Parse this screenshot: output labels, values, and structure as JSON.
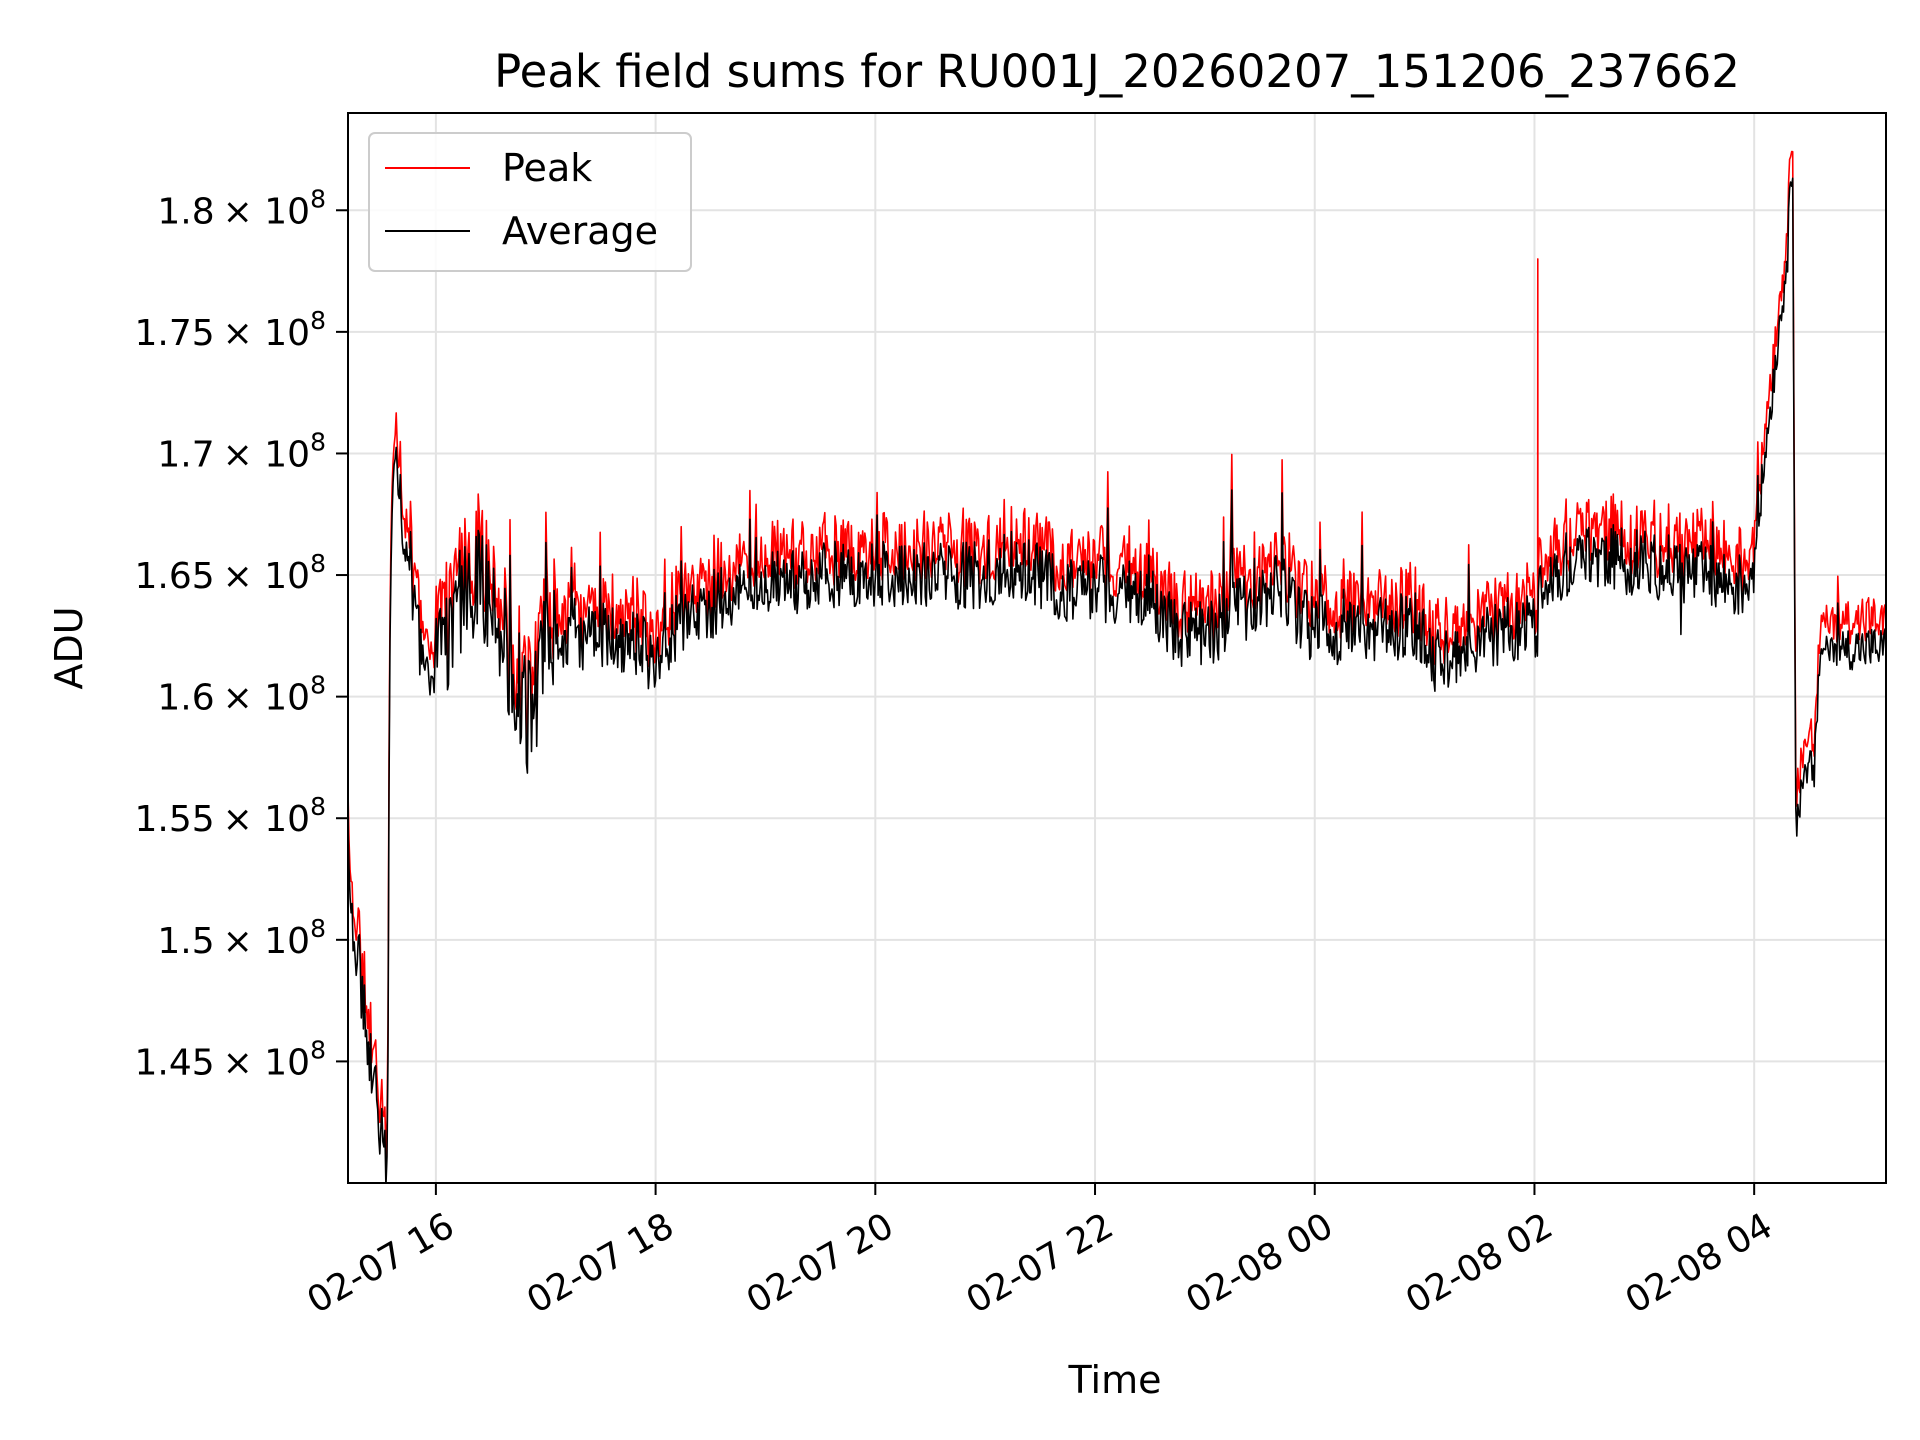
{
  "chart_data": {
    "type": "line",
    "title": "Peak field sums for RU001J_20260207_151206_237662",
    "xlabel": "Time",
    "ylabel": "ADU",
    "grid": true,
    "legend_position": "top-left",
    "x_range_hours": [
      15.2,
      29.2
    ],
    "ylim": [
      140000000,
      184000000
    ],
    "x_ticks": [
      {
        "hours": 16,
        "label": "02-07 16"
      },
      {
        "hours": 18,
        "label": "02-07 18"
      },
      {
        "hours": 20,
        "label": "02-07 20"
      },
      {
        "hours": 22,
        "label": "02-07 22"
      },
      {
        "hours": 24,
        "label": "02-08 00"
      },
      {
        "hours": 26,
        "label": "02-08 02"
      },
      {
        "hours": 28,
        "label": "02-08 04"
      }
    ],
    "y_ticks": [
      {
        "value": 145000000,
        "mantissa": "1.45",
        "base": "× 10",
        "exp": "8"
      },
      {
        "value": 150000000,
        "mantissa": "1.5",
        "base": "× 10",
        "exp": "8"
      },
      {
        "value": 155000000,
        "mantissa": "1.55",
        "base": "× 10",
        "exp": "8"
      },
      {
        "value": 160000000,
        "mantissa": "1.6",
        "base": "× 10",
        "exp": "8"
      },
      {
        "value": 165000000,
        "mantissa": "1.65",
        "base": "× 10",
        "exp": "8"
      },
      {
        "value": 170000000,
        "mantissa": "1.7",
        "base": "× 10",
        "exp": "8"
      },
      {
        "value": 175000000,
        "mantissa": "1.75",
        "base": "× 10",
        "exp": "8"
      },
      {
        "value": 180000000,
        "mantissa": "1.8",
        "base": "× 10",
        "exp": "8"
      }
    ],
    "series": [
      {
        "name": "Peak",
        "color": "#ff0000",
        "offset": 800000,
        "noise_extra": 700000,
        "spikes": [
          {
            "hours": 26.03,
            "value": 178000000
          }
        ]
      },
      {
        "name": "Average",
        "color": "#000000",
        "offset": 0,
        "noise_extra": 0,
        "spikes": []
      }
    ],
    "trend_points": [
      [
        15.2,
        154000000
      ],
      [
        15.22,
        151000000
      ],
      [
        15.3,
        149000000
      ],
      [
        15.4,
        145000000
      ],
      [
        15.5,
        142000000
      ],
      [
        15.56,
        141000000
      ],
      [
        15.58,
        162000000
      ],
      [
        15.62,
        170000000
      ],
      [
        15.75,
        165000000
      ],
      [
        15.9,
        161000000
      ],
      [
        16.0,
        161000000
      ],
      [
        16.1,
        162000000
      ],
      [
        16.3,
        165000000
      ],
      [
        16.5,
        164000000
      ],
      [
        16.7,
        161000000
      ],
      [
        16.85,
        159000000
      ],
      [
        17.0,
        162000000
      ],
      [
        17.5,
        162500000
      ],
      [
        17.9,
        162000000
      ],
      [
        18.0,
        161000000
      ],
      [
        18.2,
        163000000
      ],
      [
        18.6,
        164000000
      ],
      [
        19.0,
        164500000
      ],
      [
        19.5,
        165000000
      ],
      [
        20.0,
        165000000
      ],
      [
        20.5,
        165000000
      ],
      [
        21.0,
        165000000
      ],
      [
        21.3,
        165500000
      ],
      [
        21.6,
        164500000
      ],
      [
        22.0,
        164500000
      ],
      [
        22.5,
        164000000
      ],
      [
        22.8,
        162500000
      ],
      [
        23.0,
        162500000
      ],
      [
        23.3,
        163500000
      ],
      [
        23.7,
        164500000
      ],
      [
        23.9,
        163000000
      ],
      [
        24.3,
        162500000
      ],
      [
        24.9,
        163000000
      ],
      [
        25.1,
        161500000
      ],
      [
        25.4,
        161500000
      ],
      [
        25.6,
        162500000
      ],
      [
        26.0,
        163000000
      ],
      [
        26.03,
        163000000
      ],
      [
        26.06,
        165000000
      ],
      [
        26.5,
        165800000
      ],
      [
        27.0,
        165500000
      ],
      [
        27.5,
        165000000
      ],
      [
        27.9,
        164500000
      ],
      [
        28.0,
        165500000
      ],
      [
        28.1,
        170000000
      ],
      [
        28.2,
        174000000
      ],
      [
        28.3,
        178000000
      ],
      [
        28.35,
        182500000
      ],
      [
        28.38,
        155000000
      ],
      [
        28.5,
        157000000
      ],
      [
        28.55,
        157000000
      ],
      [
        28.6,
        162000000
      ]
    ]
  }
}
